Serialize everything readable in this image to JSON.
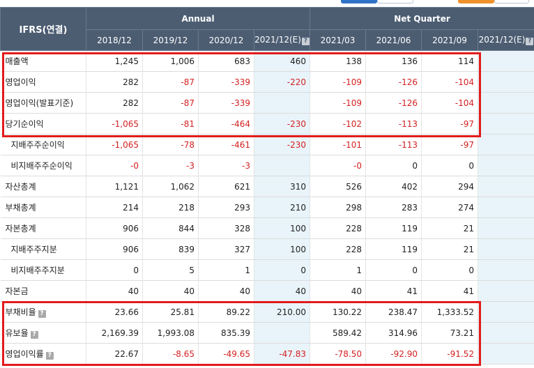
{
  "header": {
    "label": "IFRS(연결)",
    "groups": [
      "Annual",
      "Net Quarter"
    ],
    "periods": [
      "2018/12",
      "2019/12",
      "2020/12",
      "2021/12(E)",
      "2021/03",
      "2021/06",
      "2021/09",
      "2021/12(E)"
    ]
  },
  "rows": [
    {
      "name": "매출액",
      "v": [
        "1,245",
        "1,006",
        "683",
        "460",
        "138",
        "136",
        "114",
        ""
      ]
    },
    {
      "name": "영업이익",
      "v": [
        "282",
        "-87",
        "-339",
        "-220",
        "-109",
        "-126",
        "-104",
        ""
      ]
    },
    {
      "name": "영업이익(발표기준)",
      "v": [
        "282",
        "-87",
        "-339",
        "",
        "-109",
        "-126",
        "-104",
        ""
      ]
    },
    {
      "name": "당기순이익",
      "v": [
        "-1,065",
        "-81",
        "-464",
        "-230",
        "-102",
        "-113",
        "-97",
        ""
      ]
    },
    {
      "name": "지배주주순이익",
      "v": [
        "-1,065",
        "-78",
        "-461",
        "-230",
        "-101",
        "-113",
        "-97",
        ""
      ]
    },
    {
      "name": "비지배주주순이익",
      "v": [
        "-0",
        "-3",
        "-3",
        "",
        "-0",
        "0",
        "0",
        ""
      ]
    },
    {
      "name": "자산총계",
      "v": [
        "1,121",
        "1,062",
        "621",
        "310",
        "526",
        "402",
        "294",
        ""
      ]
    },
    {
      "name": "부채총계",
      "v": [
        "214",
        "218",
        "293",
        "210",
        "298",
        "283",
        "274",
        ""
      ]
    },
    {
      "name": "자본총계",
      "v": [
        "906",
        "844",
        "328",
        "100",
        "228",
        "119",
        "21",
        ""
      ]
    },
    {
      "name": "지배주주지분",
      "v": [
        "906",
        "839",
        "327",
        "100",
        "228",
        "119",
        "21",
        ""
      ]
    },
    {
      "name": "비지배주주지분",
      "v": [
        "0",
        "5",
        "1",
        "0",
        "1",
        "0",
        "0",
        ""
      ]
    },
    {
      "name": "자본금",
      "v": [
        "40",
        "40",
        "40",
        "40",
        "40",
        "41",
        "41",
        ""
      ]
    },
    {
      "name": "부채비율",
      "v": [
        "23.66",
        "25.81",
        "89.22",
        "210.00",
        "130.22",
        "238.47",
        "1,333.52",
        ""
      ]
    },
    {
      "name": "유보율",
      "v": [
        "2,169.39",
        "1,993.08",
        "835.39",
        "",
        "589.42",
        "314.96",
        "73.21",
        ""
      ]
    },
    {
      "name": "영업이익률",
      "v": [
        "22.67",
        "-8.65",
        "-49.65",
        "-47.83",
        "-78.50",
        "-92.90",
        "-91.52",
        ""
      ]
    }
  ],
  "help_glyph": "?",
  "colors": {
    "header_bg": "#4c5d72",
    "estimate_bg": "#e8f4fa",
    "negative": "#d42020",
    "highlight_box": "#e21b1b"
  }
}
